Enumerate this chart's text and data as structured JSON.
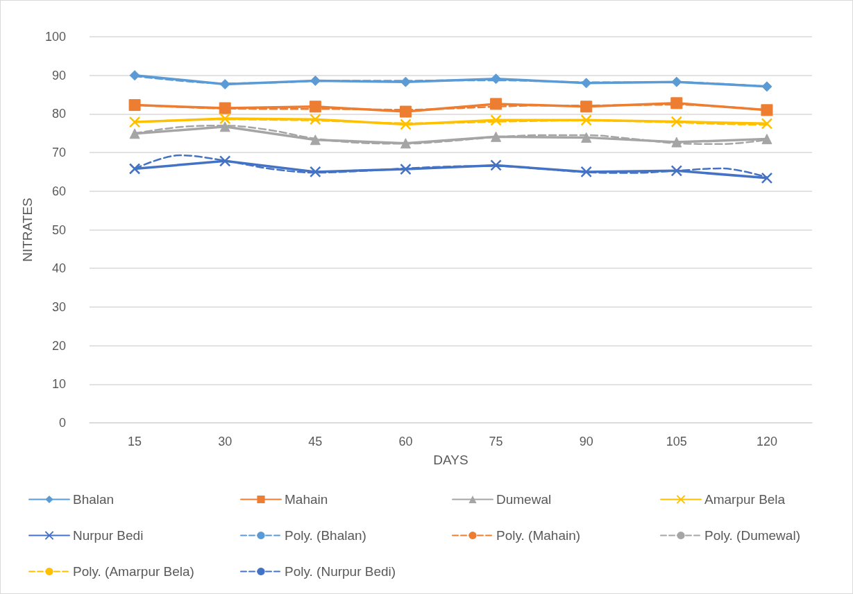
{
  "chart_data": {
    "type": "line",
    "xlabel": "DAYS",
    "ylabel": "NITRATES",
    "xlim": [
      7.5,
      127.5
    ],
    "xticks": [
      15,
      30,
      45,
      60,
      75,
      90,
      105,
      120
    ],
    "ylim": [
      0,
      100
    ],
    "yticks": [
      0,
      10,
      20,
      30,
      40,
      50,
      60,
      70,
      80,
      90,
      100
    ],
    "grid": "y",
    "legend": "bottom",
    "series": [
      {
        "name": "Bhalan",
        "color": "#5b9bd5",
        "marker": "diamond",
        "line_style": "solid",
        "x": [
          15,
          30,
          45,
          60,
          75,
          90,
          105,
          120
        ],
        "values": [
          90,
          87.7,
          88.6,
          88.3,
          89.1,
          88,
          88.3,
          87.1
        ]
      },
      {
        "name": "Mahain",
        "color": "#ed7d31",
        "marker": "square",
        "line_style": "solid",
        "x": [
          15,
          30,
          45,
          60,
          75,
          90,
          105,
          120
        ],
        "values": [
          82.3,
          81.5,
          81.9,
          80.6,
          82.6,
          81.9,
          82.8,
          81
        ]
      },
      {
        "name": "Dumewal",
        "color": "#a5a5a5",
        "marker": "triangle",
        "line_style": "solid",
        "x": [
          15,
          30,
          45,
          60,
          75,
          90,
          105,
          120
        ],
        "values": [
          74.9,
          76.7,
          73.3,
          72.4,
          74.1,
          73.9,
          72.7,
          73.5
        ]
      },
      {
        "name": "Amarpur Bela",
        "color": "#ffc000",
        "marker": "cross",
        "line_style": "solid",
        "x": [
          15,
          30,
          45,
          60,
          75,
          90,
          105,
          120
        ],
        "values": [
          77.9,
          78.8,
          78.6,
          77.3,
          78.4,
          78.4,
          78,
          77.5
        ]
      },
      {
        "name": "Nurpur Bedi",
        "color": "#4472c4",
        "marker": "cross",
        "line_style": "solid",
        "x": [
          15,
          30,
          45,
          60,
          75,
          90,
          105,
          120
        ],
        "values": [
          65.8,
          67.8,
          65,
          65.7,
          66.7,
          65,
          65.3,
          63.4
        ]
      },
      {
        "name": "Poly. (Bhalan)",
        "color": "#5b9bd5",
        "marker": "none",
        "line_style": "dashed",
        "x": [
          15,
          22.5,
          30,
          37.5,
          45,
          52.5,
          60,
          67.5,
          75,
          82.5,
          90,
          97.5,
          105,
          112.5,
          120
        ],
        "values": [
          89.8,
          88.6,
          87.9,
          88.1,
          88.5,
          88.6,
          88.6,
          88.7,
          88.7,
          88.5,
          88.2,
          88.2,
          88.2,
          87.8,
          87.1
        ]
      },
      {
        "name": "Poly. (Mahain)",
        "color": "#ed7d31",
        "marker": "none",
        "line_style": "dashed",
        "x": [
          15,
          22.5,
          30,
          37.5,
          45,
          52.5,
          60,
          67.5,
          75,
          82.5,
          90,
          97.5,
          105,
          112.5,
          120
        ],
        "values": [
          82.3,
          81.8,
          81.4,
          81.3,
          81.3,
          81.2,
          81.1,
          81.4,
          81.9,
          82.2,
          82.2,
          82.3,
          82.4,
          81.9,
          81
        ]
      },
      {
        "name": "Poly. (Dumewal)",
        "color": "#a5a5a5",
        "marker": "none",
        "line_style": "dashed",
        "x": [
          15,
          22.5,
          30,
          37.5,
          45,
          52.5,
          60,
          67.5,
          75,
          82.5,
          90,
          97.5,
          105,
          112.5,
          120
        ],
        "values": [
          75,
          76.6,
          77,
          75.8,
          73.6,
          72.5,
          72.3,
          73,
          74,
          74.5,
          74.5,
          73.6,
          72.4,
          72.2,
          73.3
        ]
      },
      {
        "name": "Poly. (Amarpur Bela)",
        "color": "#ffc000",
        "marker": "none",
        "line_style": "dashed",
        "x": [
          15,
          22.5,
          30,
          37.5,
          45,
          52.5,
          60,
          67.5,
          75,
          82.5,
          90,
          97.5,
          105,
          112.5,
          120
        ],
        "values": [
          77.9,
          78.4,
          78.6,
          78.5,
          78.3,
          77.9,
          77.6,
          77.7,
          78,
          78.2,
          78.3,
          78.1,
          77.8,
          77.4,
          77.2
        ]
      },
      {
        "name": "Poly. (Nurpur Bedi)",
        "color": "#4472c4",
        "marker": "none",
        "line_style": "dashed",
        "x": [
          15,
          22.5,
          30,
          37.5,
          45,
          52.5,
          60,
          67.5,
          75,
          82.5,
          90,
          97.5,
          105,
          112.5,
          120
        ],
        "values": [
          65.8,
          69.3,
          67.9,
          65.8,
          64.8,
          65.2,
          65.9,
          66.4,
          66.5,
          65.8,
          64.9,
          64.7,
          65.3,
          65.9,
          63.6
        ]
      }
    ]
  }
}
